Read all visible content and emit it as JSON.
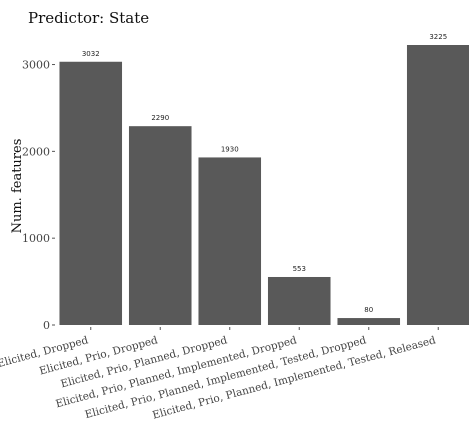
{
  "chart_data": {
    "type": "bar",
    "title": "Predictor: State",
    "xlabel": "",
    "ylabel": "Num. features",
    "categories": [
      "Elicited, Dropped",
      "Elicited, Prio, Dropped",
      "Elicited, Prio, Planned, Dropped",
      "Elicited, Prio, Planned, Implemented, Dropped",
      "Elicited, Prio, Planned, Implemented, Tested, Dropped",
      "Elicited, Prio, Planned, Implemented, Tested, Released"
    ],
    "values": [
      3032,
      2290,
      1930,
      553,
      80,
      3225
    ],
    "data_labels": [
      "3032",
      "2290",
      "1930",
      "553",
      "80",
      "3225"
    ],
    "ylim": [
      0,
      3225
    ],
    "yticks": [
      0,
      1000,
      2000,
      3000
    ],
    "ytick_labels": [
      "0",
      "1000",
      "2000",
      "3000"
    ],
    "grid": false,
    "legend": "none",
    "colors": {
      "bar": "#595959",
      "text": "#222222",
      "tick": "#555555"
    }
  }
}
